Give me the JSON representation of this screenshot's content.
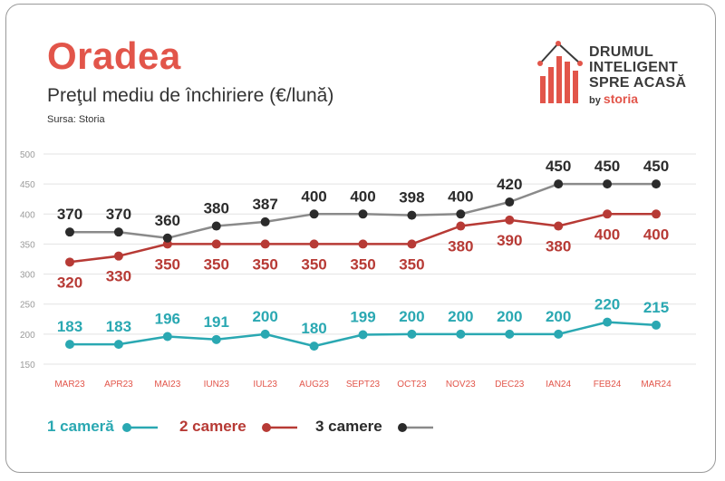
{
  "header": {
    "title": "Oradea",
    "subtitle": "Preţul mediu de închiriere (€/lună)",
    "source": "Sursa: Storia"
  },
  "logo": {
    "lines": [
      "DRUMUL",
      "INTELIGENT",
      "SPRE ACASĂ"
    ],
    "by": "by",
    "brand": "storia",
    "icon": "house-bar-chart-icon"
  },
  "colors": {
    "accent": "#e2554a",
    "teal": "#2aa8b2",
    "red": "#b73a35",
    "grey": "#8a8a8a",
    "dot_grey": "#2b2b2b"
  },
  "chart_data": {
    "type": "line",
    "categories": [
      "MAR23",
      "APR23",
      "MAI23",
      "IUN23",
      "IUL23",
      "AUG23",
      "SEPT23",
      "OCT23",
      "NOV23",
      "DEC23",
      "IAN24",
      "FEB24",
      "MAR24"
    ],
    "y_ticks": [
      150,
      200,
      250,
      300,
      350,
      400,
      450,
      500
    ],
    "ylim": [
      150,
      500
    ],
    "grid": true,
    "legend_position": "bottom-left",
    "series": [
      {
        "name": "1 cameră",
        "color": "#2aa8b2",
        "label_color": "#2aa8b2",
        "label_pos": "above",
        "values": [
          183,
          183,
          196,
          191,
          200,
          180,
          199,
          200,
          200,
          200,
          200,
          220,
          215
        ]
      },
      {
        "name": "2 camere",
        "color": "#b73a35",
        "label_color": "#b73a35",
        "label_pos": "below",
        "values": [
          320,
          330,
          350,
          350,
          350,
          350,
          350,
          350,
          380,
          390,
          380,
          400,
          400
        ]
      },
      {
        "name": "3 camere",
        "color": "#8a8a8a",
        "label_color": "#2b2b2b",
        "label_pos": "above",
        "values": [
          370,
          370,
          360,
          380,
          387,
          400,
          400,
          398,
          400,
          420,
          450,
          450,
          450
        ]
      }
    ]
  }
}
